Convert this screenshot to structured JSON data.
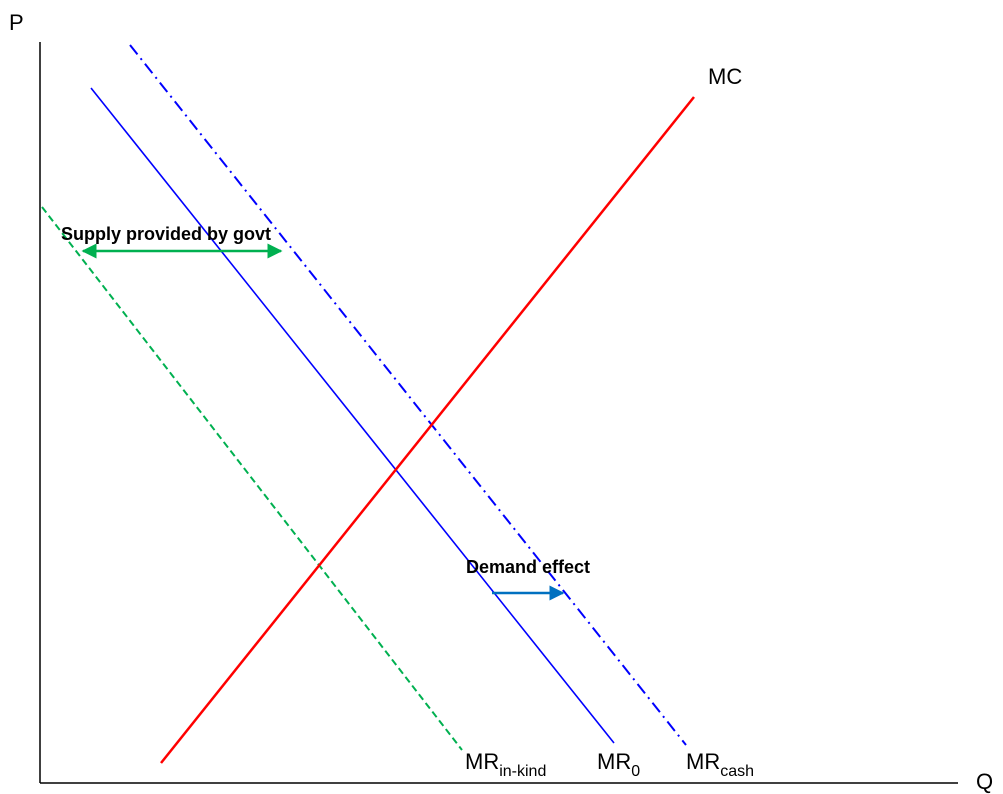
{
  "axes": {
    "y_label": "P",
    "x_label": "Q"
  },
  "curves": {
    "mc": {
      "main": "MC",
      "color": "#ff0000"
    },
    "mr0": {
      "main": "MR",
      "sub": "0",
      "color": "#0000ff"
    },
    "mr_cash": {
      "main": "MR",
      "sub": "cash",
      "color": "#0000ff"
    },
    "mr_in_kind": {
      "main": "MR",
      "sub": "in-kind",
      "color": "#00b050"
    }
  },
  "annotations": {
    "supply": {
      "text": "Supply provided by govt",
      "color": "#00b050"
    },
    "demand": {
      "text": "Demand effect",
      "color": "#0070c0"
    }
  }
}
